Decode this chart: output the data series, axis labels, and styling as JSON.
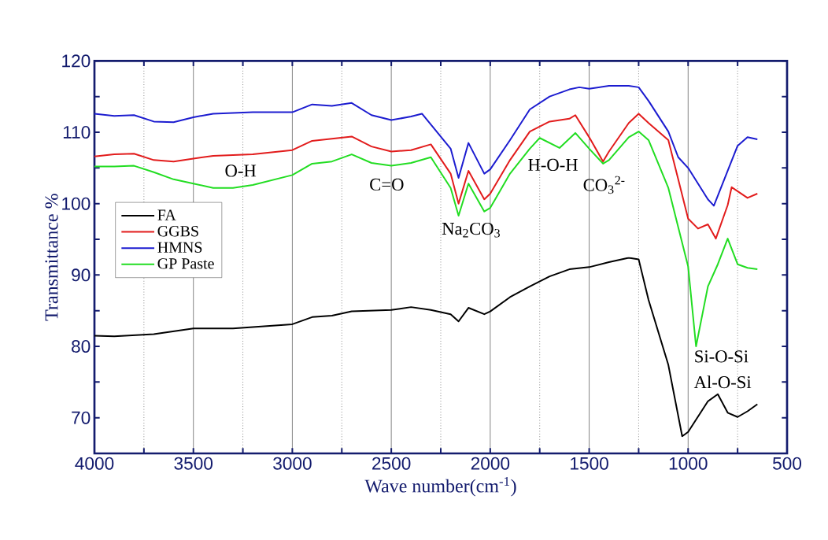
{
  "chart_data": {
    "type": "line",
    "xlabel": "Wave number(cm$^{-1}$)",
    "ylabel": "Transmittance %",
    "xlim": [
      4000,
      500
    ],
    "ylim": [
      65,
      120
    ],
    "xticks": [
      4000,
      {
        "value": 3750,
        "label": null
      },
      3500,
      {
        "value": 3250,
        "label": null
      },
      3000,
      {
        "value": 2750,
        "label": null
      },
      2500,
      {
        "value": 2250,
        "label": null
      },
      2000,
      {
        "value": 1750,
        "label": null
      },
      1500,
      {
        "value": 1250,
        "label": null
      },
      1000,
      {
        "value": 750,
        "label": null
      },
      500
    ],
    "yticks": [
      70,
      {
        "value": 75,
        "label": null
      },
      80,
      {
        "value": 85,
        "label": null
      },
      90,
      {
        "value": 95,
        "label": null
      },
      100,
      {
        "value": 105,
        "label": null
      },
      110,
      {
        "value": 115,
        "label": null
      },
      120
    ],
    "grid": "x",
    "legend": "left",
    "line_style": "solid",
    "series": [
      {
        "name": "FA",
        "color": "#000000",
        "x": [
          4000,
          3900,
          3700,
          3500,
          3300,
          3000,
          2900,
          2800,
          2700,
          2500,
          2400,
          2300,
          2200,
          2160,
          2110,
          2030,
          2000,
          1900,
          1800,
          1700,
          1600,
          1500,
          1400,
          1300,
          1250,
          1200,
          1100,
          1030,
          1000,
          900,
          850,
          800,
          750,
          700,
          650
        ],
        "values": [
          81.5,
          81.4,
          81.7,
          82.5,
          82.5,
          83.1,
          84.1,
          84.3,
          84.9,
          85.1,
          85.5,
          85.1,
          84.5,
          83.5,
          85.4,
          84.5,
          84.9,
          86.9,
          88.4,
          89.8,
          90.8,
          91.1,
          91.8,
          92.4,
          92.2,
          86.5,
          77.4,
          67.4,
          68.0,
          72.3,
          73.3,
          70.7,
          70.1,
          70.9,
          71.9
        ]
      },
      {
        "name": "GGBS",
        "color": "#e21c1c",
        "x": [
          4000,
          3900,
          3800,
          3700,
          3600,
          3500,
          3400,
          3200,
          3000,
          2900,
          2800,
          2700,
          2600,
          2500,
          2400,
          2300,
          2200,
          2160,
          2110,
          2030,
          2000,
          1900,
          1800,
          1700,
          1600,
          1570,
          1500,
          1430,
          1400,
          1300,
          1250,
          1200,
          1100,
          1050,
          1000,
          950,
          900,
          860,
          800,
          780,
          700,
          650
        ],
        "values": [
          106.6,
          106.9,
          107.0,
          106.1,
          105.9,
          106.3,
          106.7,
          106.9,
          107.5,
          108.8,
          109.1,
          109.4,
          108.0,
          107.3,
          107.5,
          108.3,
          104.2,
          100.0,
          104.6,
          100.6,
          101.4,
          106.1,
          110.1,
          111.5,
          111.9,
          112.4,
          109.3,
          105.9,
          107.3,
          111.3,
          112.6,
          111.3,
          108.9,
          103.4,
          97.9,
          96.5,
          97.1,
          95.1,
          99.8,
          102.3,
          100.8,
          101.4
        ]
      },
      {
        "name": "HMNS",
        "color": "#1c1cd0",
        "x": [
          4000,
          3900,
          3800,
          3700,
          3600,
          3500,
          3400,
          3200,
          3000,
          2900,
          2800,
          2700,
          2600,
          2500,
          2400,
          2345,
          2200,
          2160,
          2110,
          2030,
          2000,
          1900,
          1800,
          1700,
          1600,
          1550,
          1500,
          1400,
          1300,
          1250,
          1200,
          1100,
          1050,
          1000,
          900,
          870,
          800,
          750,
          700,
          650
        ],
        "values": [
          112.6,
          112.3,
          112.4,
          111.5,
          111.4,
          112.1,
          112.6,
          112.8,
          112.8,
          113.9,
          113.7,
          114.1,
          112.4,
          111.7,
          112.2,
          112.6,
          107.7,
          103.6,
          108.5,
          104.2,
          104.8,
          108.9,
          113.2,
          115.0,
          116.0,
          116.3,
          116.1,
          116.5,
          116.5,
          116.3,
          114.4,
          110.1,
          106.5,
          105.0,
          100.6,
          99.7,
          104.6,
          108.1,
          109.3,
          109.0
        ]
      },
      {
        "name": "GP Paste",
        "color": "#22dd22",
        "x": [
          4000,
          3900,
          3800,
          3700,
          3600,
          3500,
          3400,
          3300,
          3200,
          3000,
          2900,
          2800,
          2700,
          2600,
          2500,
          2400,
          2300,
          2200,
          2160,
          2110,
          2030,
          2000,
          1900,
          1800,
          1750,
          1650,
          1570,
          1500,
          1430,
          1400,
          1300,
          1250,
          1200,
          1100,
          1000,
          960,
          900,
          850,
          800,
          750,
          700,
          650
        ],
        "values": [
          105.2,
          105.2,
          105.3,
          104.4,
          103.4,
          102.8,
          102.2,
          102.2,
          102.6,
          104.0,
          105.6,
          105.9,
          106.9,
          105.7,
          105.3,
          105.7,
          106.5,
          102.2,
          98.3,
          102.8,
          98.9,
          99.4,
          104.2,
          107.7,
          109.2,
          107.8,
          109.9,
          107.7,
          105.6,
          106.1,
          109.3,
          110.1,
          108.9,
          102.2,
          91.2,
          80.0,
          88.4,
          91.5,
          95.1,
          91.5,
          91.0,
          90.8
        ]
      }
    ],
    "annotations": [
      "O-H",
      "C=O",
      "Na$_{2}$CO$_{3}$",
      "H-O-H",
      "CO$_{3}$$^{2-}$",
      "Si-O-Si",
      "Al-O-Si"
    ]
  }
}
